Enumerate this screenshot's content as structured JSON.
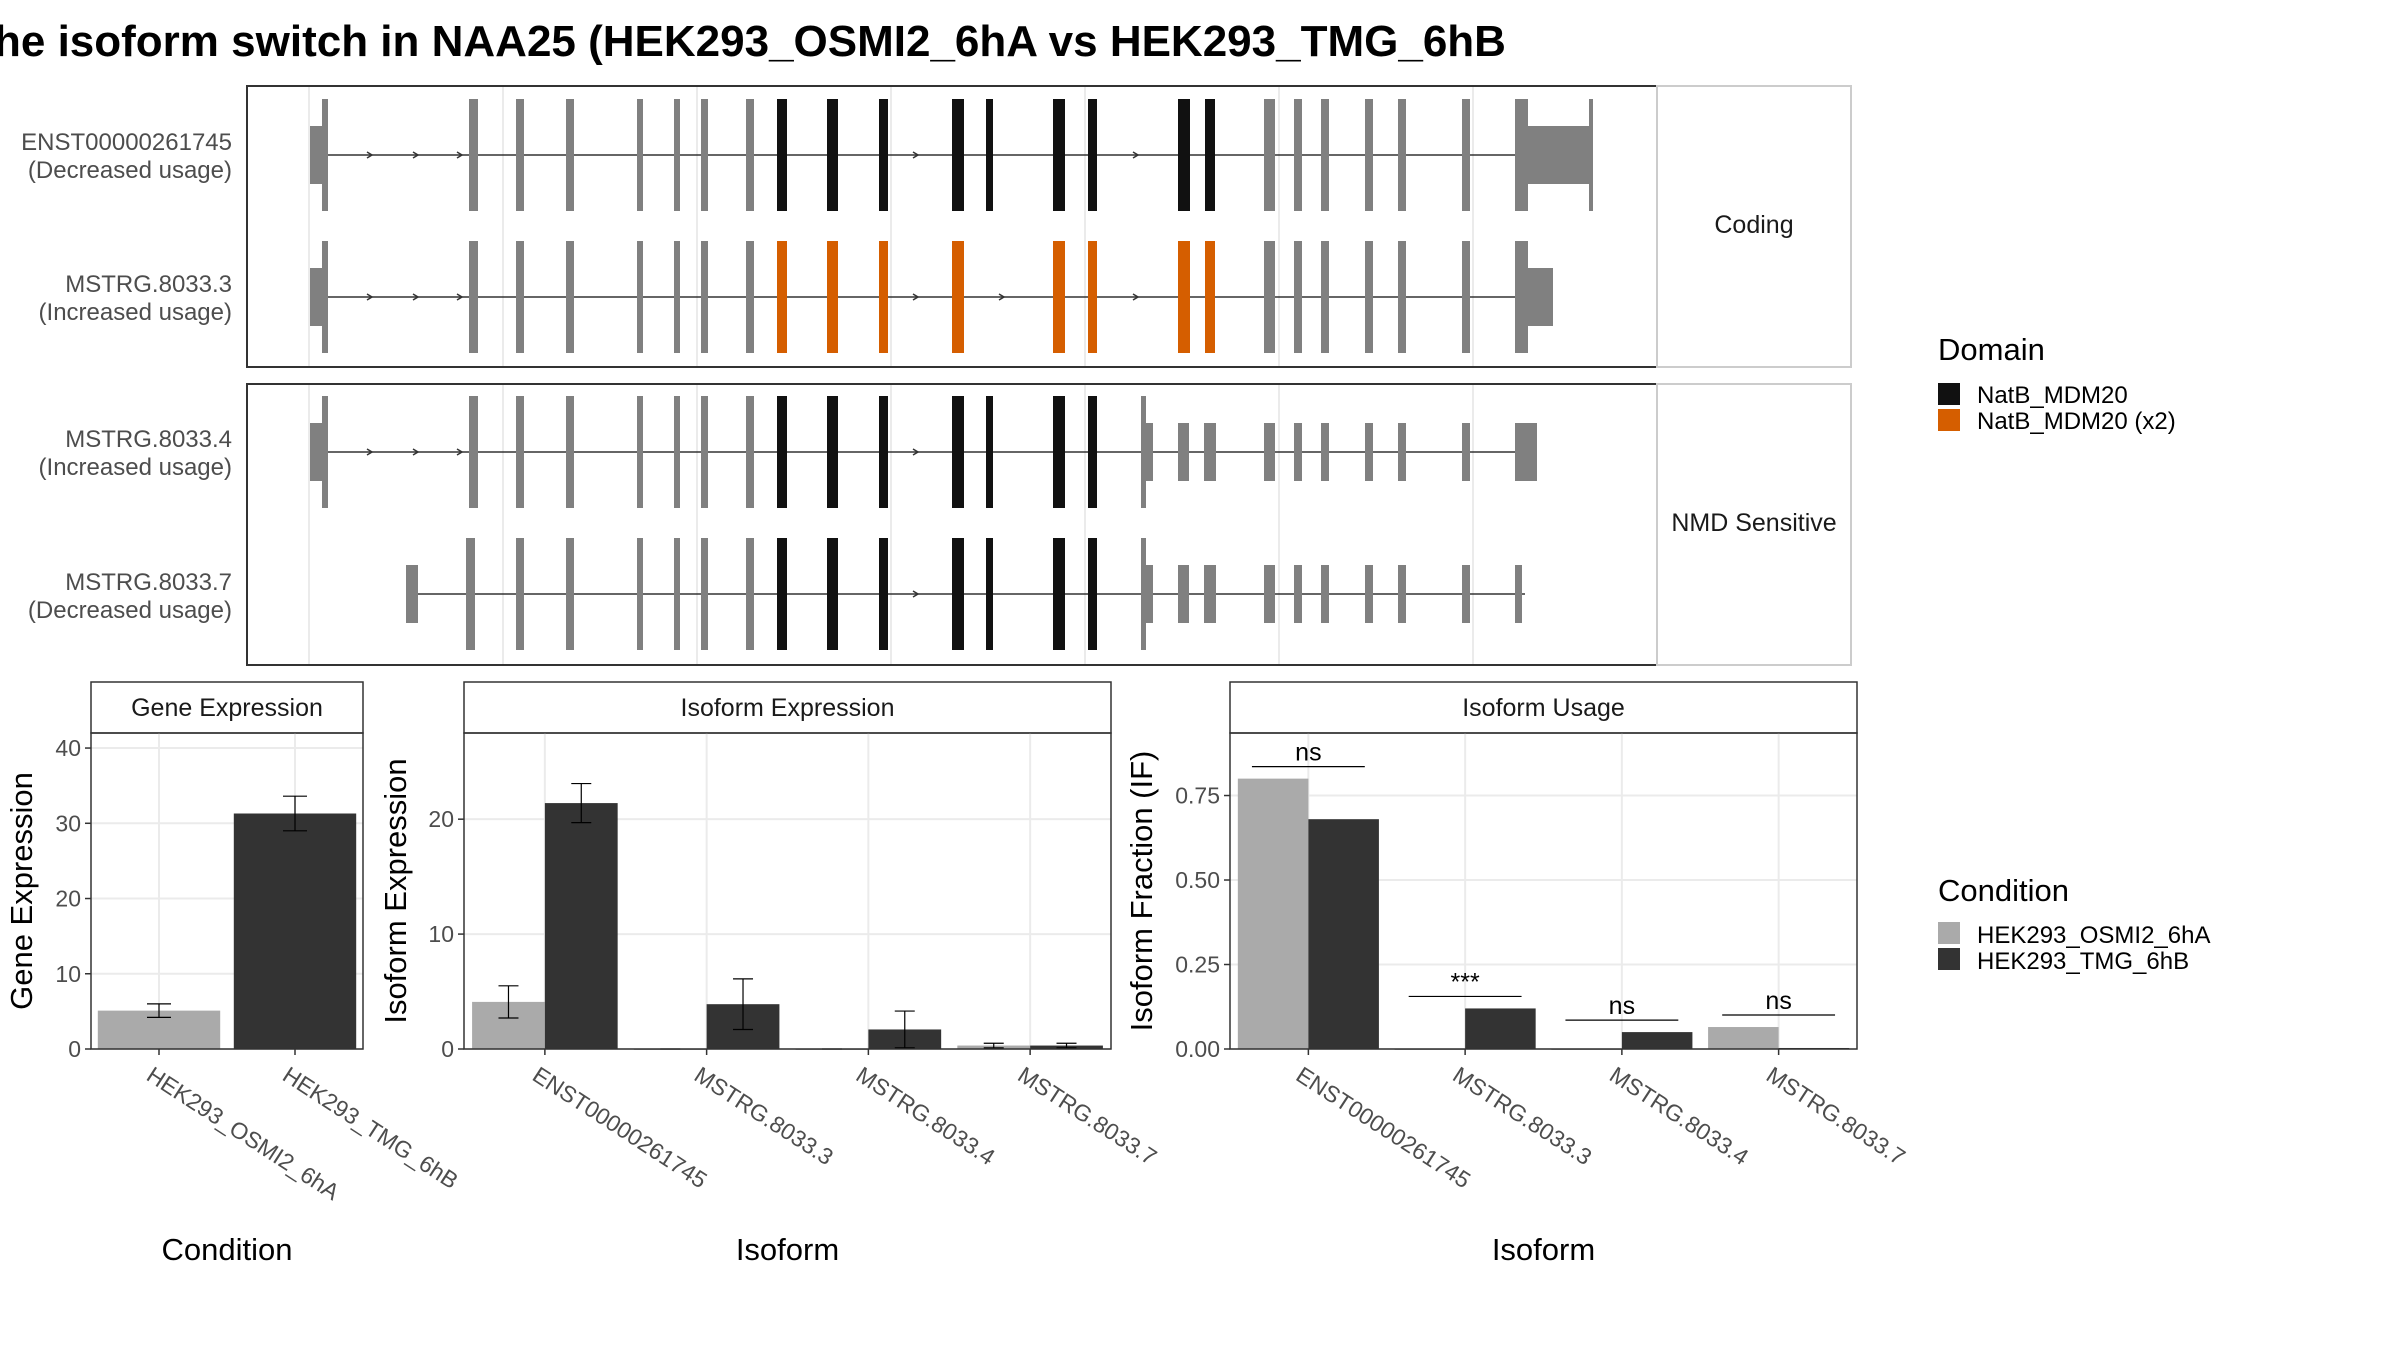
{
  "title": "he isoform switch in NAA25 (HEK293_OSMI2_6hA vs HEK293_TMG_6hB",
  "colors": {
    "exon": "#808080",
    "domain_natb": "#111111",
    "domain_natb_x2": "#D55E00",
    "cond_a": "#AAAAAA",
    "cond_b": "#333333",
    "panel_border": "#333333",
    "strip_border": "#cccccc",
    "grid": "#ebebeb"
  },
  "transcripts_panel": {
    "groups": [
      {
        "label": "Coding",
        "transcripts": [
          {
            "id": "ENST00000261745",
            "usage": "(Decreased usage)"
          },
          {
            "id": "MSTRG.8033.3",
            "usage": "(Increased usage)"
          }
        ]
      },
      {
        "label": "NMD Sensitive",
        "transcripts": [
          {
            "id": "MSTRG.8033.4",
            "usage": "(Increased usage)"
          },
          {
            "id": "MSTRG.8033.7",
            "usage": "(Decreased usage)"
          }
        ]
      }
    ],
    "domain_legend": {
      "title": "Domain",
      "entries": [
        {
          "label": "NatB_MDM20",
          "color": "#111111"
        },
        {
          "label": "NatB_MDM20 (x2)",
          "color": "#D55E00"
        }
      ]
    }
  },
  "condition_legend": {
    "title": "Condition",
    "entries": [
      {
        "label": "HEK293_OSMI2_6hA",
        "color": "#AAAAAA"
      },
      {
        "label": "HEK293_TMG_6hB",
        "color": "#333333"
      }
    ]
  },
  "chart_data": [
    {
      "type": "bar",
      "strip": "Gene Expression",
      "xlabel": "Condition",
      "ylabel": "Gene Expression",
      "categories": [
        "HEK293_OSMI2_6hA",
        "HEK293_TMG_6hB"
      ],
      "values": [
        5.1,
        31.3
      ],
      "errors": [
        0.9,
        2.3
      ],
      "ylim": [
        0,
        42
      ],
      "yticks": [
        "0",
        "10",
        "20",
        "30",
        "40"
      ]
    },
    {
      "type": "bar",
      "strip": "Isoform Expression",
      "xlabel": "Isoform",
      "ylabel": "Isoform Expression",
      "categories": [
        "ENST00000261745",
        "MSTRG.8033.3",
        "MSTRG.8033.4",
        "MSTRG.8033.7"
      ],
      "series": [
        {
          "name": "HEK293_OSMI2_6hA",
          "values": [
            4.1,
            0,
            0,
            0.3
          ],
          "errors": [
            1.4,
            0,
            0,
            0.2
          ]
        },
        {
          "name": "HEK293_TMG_6hB",
          "values": [
            21.4,
            3.9,
            1.7,
            0.3
          ],
          "errors": [
            1.7,
            2.2,
            1.6,
            0.2
          ]
        }
      ],
      "ylim": [
        0,
        27.5
      ],
      "yticks": [
        "0",
        "10",
        "20"
      ]
    },
    {
      "type": "bar",
      "strip": "Isoform Usage",
      "xlabel": "Isoform",
      "ylabel": "Isoform Fraction (IF)",
      "categories": [
        "ENST00000261745",
        "MSTRG.8033.3",
        "MSTRG.8033.4",
        "MSTRG.8033.7"
      ],
      "series": [
        {
          "name": "HEK293_OSMI2_6hA",
          "values": [
            0.8,
            0,
            0,
            0.065
          ]
        },
        {
          "name": "HEK293_TMG_6hB",
          "values": [
            0.68,
            0.12,
            0.05,
            0.003
          ]
        }
      ],
      "significance": [
        "ns",
        "***",
        "ns",
        "ns"
      ],
      "ylim": [
        0,
        0.935
      ],
      "yticks": [
        "0.00",
        "0.25",
        "0.50",
        "0.75"
      ]
    }
  ]
}
